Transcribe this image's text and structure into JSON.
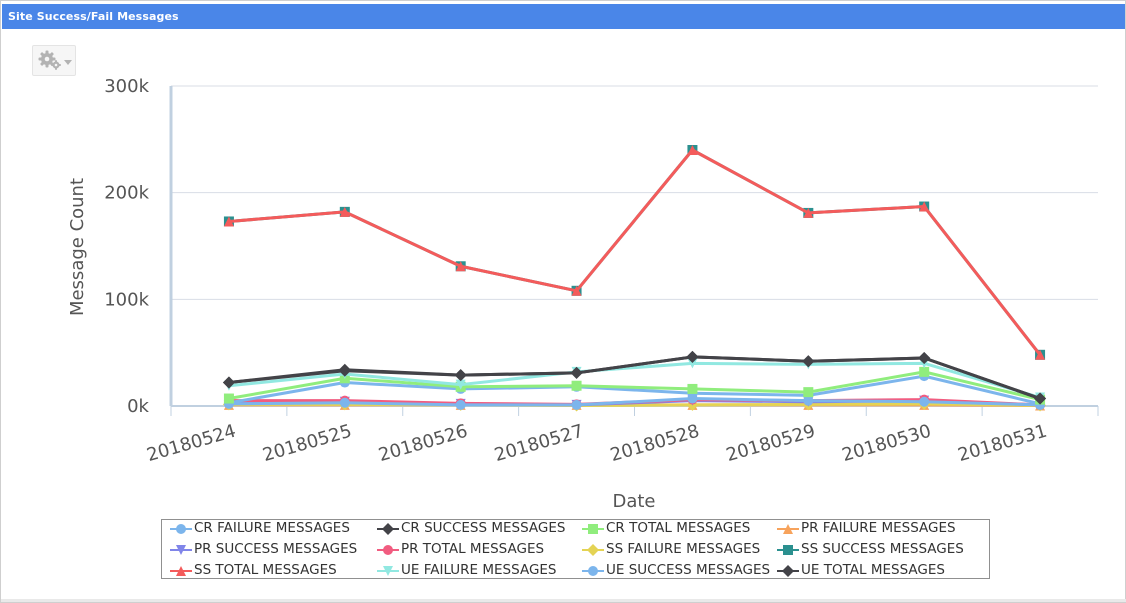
{
  "window": {
    "title": "Site Success/Fail Messages"
  },
  "toolbar": {
    "settings_icon": "gear-icon",
    "dropdown_icon": "chevron-down-icon"
  },
  "chart_data": {
    "type": "line",
    "xlabel": "Date",
    "ylabel": "Message Count",
    "ylim": [
      0,
      300000
    ],
    "yticks": [
      0,
      100000,
      200000,
      300000
    ],
    "ytick_labels": [
      "0k",
      "100k",
      "200k",
      "300k"
    ],
    "grid": true,
    "legend": "bottom",
    "categories": [
      "20180524",
      "20180525",
      "20180526",
      "20180527",
      "20180528",
      "20180529",
      "20180530",
      "20180531"
    ],
    "series": [
      {
        "name": "CR FAILURE MESSAGES",
        "color": "#7cb5ec",
        "marker": "circle",
        "values": [
          3000,
          22000,
          16000,
          18000,
          12000,
          10000,
          28000,
          2000
        ]
      },
      {
        "name": "CR SUCCESS MESSAGES",
        "color": "#434348",
        "marker": "diamond",
        "values": [
          22000,
          33000,
          29000,
          31000,
          46000,
          42000,
          45000,
          7000
        ]
      },
      {
        "name": "CR TOTAL MESSAGES",
        "color": "#90ed7d",
        "marker": "square",
        "values": [
          7000,
          26000,
          18000,
          19000,
          16000,
          13000,
          32000,
          6000
        ]
      },
      {
        "name": "PR FAILURE MESSAGES",
        "color": "#f7a35c",
        "marker": "triangle",
        "values": [
          1000,
          1000,
          1000,
          1000,
          1000,
          1000,
          1000,
          500
        ]
      },
      {
        "name": "PR SUCCESS MESSAGES",
        "color": "#8085e9",
        "marker": "triangle-down",
        "values": [
          4000,
          4000,
          2000,
          1000,
          5000,
          4000,
          5000,
          1000
        ]
      },
      {
        "name": "PR TOTAL MESSAGES",
        "color": "#f15c80",
        "marker": "circle",
        "values": [
          5000,
          5000,
          2500,
          1500,
          6000,
          5000,
          6000,
          1000
        ]
      },
      {
        "name": "SS FAILURE MESSAGES",
        "color": "#e4d354",
        "marker": "diamond",
        "values": [
          1500,
          1500,
          1000,
          500,
          1000,
          1500,
          2000,
          500
        ]
      },
      {
        "name": "SS SUCCESS MESSAGES",
        "color": "#2b908f",
        "marker": "square",
        "values": [
          173000,
          182000,
          131000,
          108000,
          240000,
          181000,
          187000,
          48000
        ]
      },
      {
        "name": "SS TOTAL MESSAGES",
        "color": "#f45b5b",
        "marker": "triangle",
        "values": [
          173000,
          182000,
          131000,
          108000,
          240000,
          181000,
          187000,
          48000
        ]
      },
      {
        "name": "UE FAILURE MESSAGES",
        "color": "#91e8e1",
        "marker": "triangle-down",
        "values": [
          19000,
          30000,
          20000,
          32000,
          40000,
          39000,
          40000,
          8000
        ]
      },
      {
        "name": "UE SUCCESS MESSAGES",
        "color": "#7cb5ec",
        "marker": "circle",
        "values": [
          2000,
          3000,
          1000,
          1000,
          7000,
          5000,
          4000,
          1000
        ]
      },
      {
        "name": "UE TOTAL MESSAGES",
        "color": "#434348",
        "marker": "diamond",
        "values": [
          22000,
          34000,
          29000,
          31000,
          46000,
          42000,
          45000,
          7000
        ]
      }
    ]
  }
}
